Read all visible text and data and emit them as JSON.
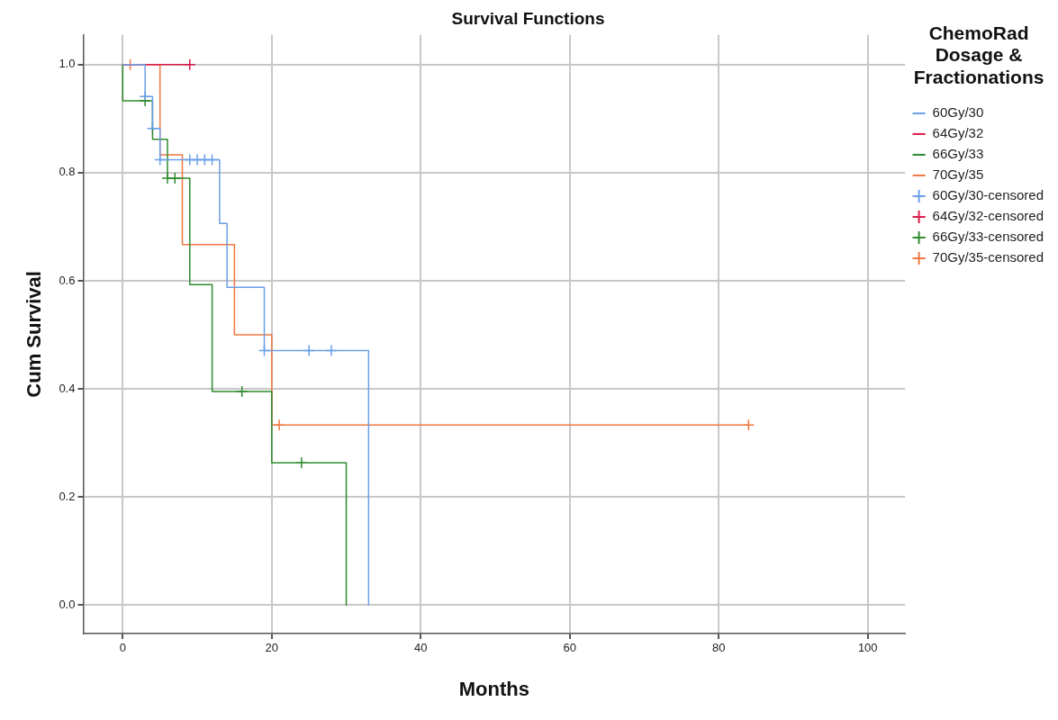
{
  "chart_data": {
    "type": "step",
    "title": "Survival Functions",
    "xlabel": "Months",
    "ylabel": "Cum Survival",
    "legend_title": "ChemoRad Dosage & Fractionations",
    "legend": "right",
    "grid": true,
    "xlim": [
      -5.3,
      105
    ],
    "xticks": [
      0,
      20,
      40,
      60,
      80,
      100
    ],
    "ylim": [
      -0.053,
      1.055
    ],
    "yticks": [
      {
        "value": 0,
        "label": "0.0"
      },
      {
        "value": 0.2,
        "label": "0.2"
      },
      {
        "value": 0.4,
        "label": "0.4"
      },
      {
        "value": 0.6,
        "label": "0.6"
      },
      {
        "value": 0.8,
        "label": "0.8"
      },
      {
        "value": 1,
        "label": "1.0"
      }
    ],
    "series": [
      {
        "name": "60Gy/30",
        "color": "#6a9fe6",
        "x": [
          0,
          3,
          4,
          5,
          13,
          14,
          19,
          33
        ],
        "values": [
          1,
          0.941,
          0.882,
          0.824,
          0.706,
          0.588,
          0.471,
          0
        ]
      },
      {
        "name": "64Gy/32",
        "color": "#d81e4a",
        "x": [
          0,
          9
        ],
        "values": [
          1,
          1
        ]
      },
      {
        "name": "66Gy/33",
        "color": "#2e8b2e",
        "x": [
          0,
          0,
          4,
          6,
          9,
          12,
          20,
          30
        ],
        "values": [
          1,
          0.933,
          0.862,
          0.79,
          0.593,
          0.395,
          0.263,
          0
        ]
      },
      {
        "name": "70Gy/35",
        "color": "#f07840",
        "x": [
          0,
          5,
          8,
          15,
          20,
          84
        ],
        "values": [
          1,
          0.833,
          0.667,
          0.5,
          0.333,
          0.333
        ]
      },
      {
        "name": "60Gy/30-censored",
        "type": "scatter",
        "marker": "cross",
        "color": "#6a9fe6",
        "x": [
          3,
          4,
          5,
          9,
          10,
          11,
          12,
          19,
          25,
          28
        ],
        "values": [
          0.941,
          0.882,
          0.824,
          0.824,
          0.824,
          0.824,
          0.824,
          0.471,
          0.471,
          0.471
        ]
      },
      {
        "name": "64Gy/32-censored",
        "type": "scatter",
        "marker": "cross",
        "color": "#d81e4a",
        "x": [
          9
        ],
        "values": [
          1
        ]
      },
      {
        "name": "66Gy/33-censored",
        "type": "scatter",
        "marker": "cross",
        "color": "#2e8b2e",
        "x": [
          3,
          6,
          7,
          16,
          24
        ],
        "values": [
          0.933,
          0.79,
          0.79,
          0.395,
          0.263
        ]
      },
      {
        "name": "70Gy/35-censored",
        "type": "scatter",
        "marker": "cross",
        "color": "#f07840",
        "x": [
          1,
          21,
          84
        ],
        "values": [
          1,
          0.333,
          0.333
        ]
      }
    ]
  }
}
